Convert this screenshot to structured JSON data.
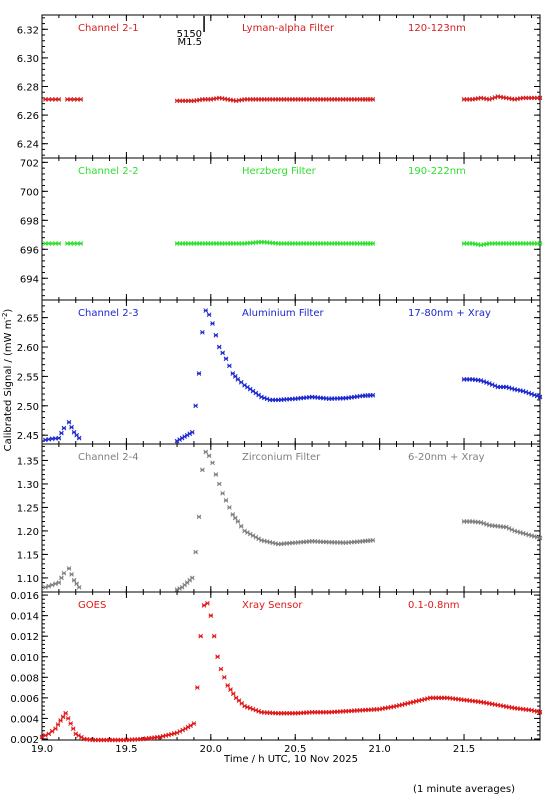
{
  "chart_data": {
    "type": "scatter",
    "xlabel": "Time / h UTC, 10 Nov 2025",
    "ylabel": "Calibrated Signal / (mW m",
    "ylabel_sup": "-2",
    "ylabel_close": ")",
    "footnote": "(1 minute averages)",
    "xlim": [
      19.0,
      21.95
    ],
    "xticks": [
      19.0,
      19.5,
      20.0,
      20.5,
      21.0,
      21.5
    ],
    "xtick_labels": [
      "19.0",
      "19.5",
      "20.0",
      "20.5",
      "21.0",
      "21.5"
    ],
    "flare_marker": {
      "x": 19.96,
      "label_top": "5150",
      "label_bottom": "M1.5"
    },
    "panels": [
      {
        "id": "ch21",
        "left_label": "Channel 2-1",
        "mid_label": "Lyman-alpha Filter",
        "right_label": "120-123nm",
        "color": "#d42020",
        "ylim": [
          6.23,
          6.33
        ],
        "yticks": [
          6.24,
          6.26,
          6.28,
          6.3,
          6.32
        ],
        "ytick_labels": [
          "6.24",
          "6.26",
          "6.28",
          "6.30",
          "6.32"
        ],
        "segments": [
          {
            "x": [
              19.02,
              19.06,
              19.1
            ],
            "y": [
              6.271,
              6.271,
              6.271
            ]
          },
          {
            "x": [
              19.15,
              19.19,
              19.23
            ],
            "y": [
              6.271,
              6.271,
              6.271
            ]
          },
          {
            "x": [
              19.8,
              19.85,
              19.9,
              19.95,
              20.0,
              20.05,
              20.1,
              20.15,
              20.2,
              20.3,
              20.4,
              20.5,
              20.6,
              20.7,
              20.8,
              20.9,
              20.96
            ],
            "y": [
              6.27,
              6.27,
              6.27,
              6.271,
              6.271,
              6.272,
              6.271,
              6.27,
              6.271,
              6.271,
              6.271,
              6.271,
              6.271,
              6.271,
              6.271,
              6.271,
              6.271
            ]
          },
          {
            "x": [
              21.5,
              21.55,
              21.6,
              21.65,
              21.7,
              21.75,
              21.8,
              21.85,
              21.9,
              21.95
            ],
            "y": [
              6.271,
              6.271,
              6.272,
              6.271,
              6.273,
              6.272,
              6.271,
              6.272,
              6.272,
              6.272
            ]
          }
        ]
      },
      {
        "id": "ch22",
        "left_label": "Channel 2-2",
        "mid_label": "Herzberg Filter",
        "right_label": "190-222nm",
        "color": "#2ee02e",
        "ylim": [
          692.5,
          702.3
        ],
        "yticks": [
          694,
          696,
          698,
          700,
          702
        ],
        "ytick_labels": [
          "694",
          "696",
          "698",
          "700",
          "702"
        ],
        "segments": [
          {
            "x": [
              19.02,
              19.06,
              19.1
            ],
            "y": [
              696.4,
              696.4,
              696.4
            ]
          },
          {
            "x": [
              19.15,
              19.19,
              19.23
            ],
            "y": [
              696.4,
              696.4,
              696.4
            ]
          },
          {
            "x": [
              19.8,
              19.9,
              20.0,
              20.1,
              20.2,
              20.3,
              20.4,
              20.5,
              20.6,
              20.7,
              20.8,
              20.9,
              20.96
            ],
            "y": [
              696.4,
              696.4,
              696.4,
              696.4,
              696.4,
              696.5,
              696.4,
              696.4,
              696.4,
              696.4,
              696.4,
              696.4,
              696.4
            ]
          },
          {
            "x": [
              21.5,
              21.55,
              21.6,
              21.65,
              21.7,
              21.75,
              21.8,
              21.85,
              21.9,
              21.95
            ],
            "y": [
              696.4,
              696.4,
              696.3,
              696.4,
              696.4,
              696.4,
              696.4,
              696.4,
              696.4,
              696.4
            ]
          }
        ]
      },
      {
        "id": "ch23",
        "left_label": "Channel 2-3",
        "mid_label": "Aluminium Filter",
        "right_label": "17-80nm + Xray",
        "color": "#1c28d0",
        "ylim": [
          2.435,
          2.68
        ],
        "yticks": [
          2.45,
          2.5,
          2.55,
          2.6,
          2.65
        ],
        "ytick_labels": [
          "2.45",
          "2.50",
          "2.55",
          "2.60",
          "2.65"
        ],
        "segments": [
          {
            "x": [
              19.02,
              19.06,
              19.1,
              19.13
            ],
            "y": [
              2.442,
              2.444,
              2.445,
              2.462
            ]
          },
          {
            "x": [
              19.16,
              19.19,
              19.22
            ],
            "y": [
              2.472,
              2.455,
              2.445
            ]
          },
          {
            "x": [
              19.8,
              19.83,
              19.86,
              19.89,
              19.91,
              19.93,
              19.95,
              19.97,
              19.99,
              20.01,
              20.03,
              20.05,
              20.07,
              20.09,
              20.11,
              20.13,
              20.16,
              20.2,
              20.25,
              20.3,
              20.35,
              20.4,
              20.5,
              20.6,
              20.7,
              20.8,
              20.9,
              20.96
            ],
            "y": [
              2.44,
              2.445,
              2.45,
              2.455,
              2.5,
              2.555,
              2.625,
              2.662,
              2.655,
              2.64,
              2.62,
              2.6,
              2.59,
              2.58,
              2.568,
              2.555,
              2.545,
              2.535,
              2.525,
              2.515,
              2.51,
              2.51,
              2.512,
              2.515,
              2.512,
              2.513,
              2.517,
              2.518
            ]
          },
          {
            "x": [
              21.5,
              21.55,
              21.6,
              21.65,
              21.7,
              21.75,
              21.8,
              21.85,
              21.9,
              21.95
            ],
            "y": [
              2.545,
              2.545,
              2.543,
              2.538,
              2.532,
              2.532,
              2.528,
              2.525,
              2.52,
              2.515
            ]
          }
        ]
      },
      {
        "id": "ch24",
        "left_label": "Channel 2-4",
        "mid_label": "Zirconium Filter",
        "right_label": "6-20nm + Xray",
        "color": "#808080",
        "ylim": [
          1.07,
          1.385
        ],
        "yticks": [
          1.1,
          1.15,
          1.2,
          1.25,
          1.3,
          1.35
        ],
        "ytick_labels": [
          "1.10",
          "1.15",
          "1.20",
          "1.25",
          "1.30",
          "1.35"
        ],
        "segments": [
          {
            "x": [
              19.02,
              19.06,
              19.1,
              19.13
            ],
            "y": [
              1.08,
              1.085,
              1.09,
              1.11
            ]
          },
          {
            "x": [
              19.16,
              19.19,
              19.22
            ],
            "y": [
              1.12,
              1.095,
              1.08
            ]
          },
          {
            "x": [
              19.8,
              19.83,
              19.86,
              19.89,
              19.91,
              19.93,
              19.95,
              19.97,
              19.99,
              20.01,
              20.03,
              20.05,
              20.07,
              20.09,
              20.11,
              20.13,
              20.16,
              20.2,
              20.25,
              20.3,
              20.4,
              20.5,
              20.6,
              20.7,
              20.8,
              20.9,
              20.96
            ],
            "y": [
              1.075,
              1.08,
              1.09,
              1.1,
              1.155,
              1.23,
              1.33,
              1.368,
              1.36,
              1.345,
              1.32,
              1.3,
              1.28,
              1.265,
              1.25,
              1.235,
              1.22,
              1.2,
              1.19,
              1.18,
              1.172,
              1.175,
              1.178,
              1.176,
              1.175,
              1.178,
              1.18
            ]
          },
          {
            "x": [
              21.5,
              21.55,
              21.6,
              21.65,
              21.7,
              21.75,
              21.8,
              21.85,
              21.9,
              21.95
            ],
            "y": [
              1.22,
              1.22,
              1.218,
              1.212,
              1.21,
              1.208,
              1.2,
              1.195,
              1.19,
              1.185
            ]
          }
        ]
      },
      {
        "id": "goes",
        "left_label": "GOES",
        "mid_label": "Xray Sensor",
        "right_label": "0.1-0.8nm",
        "color": "#e01818",
        "ylim": [
          0.0019,
          0.0163
        ],
        "yticks": [
          0.002,
          0.004,
          0.006,
          0.008,
          0.01,
          0.012,
          0.014,
          0.016
        ],
        "ytick_labels": [
          "0.002",
          "0.004",
          "0.006",
          "0.008",
          "0.010",
          "0.012",
          "0.014",
          "0.016"
        ],
        "segments": [
          {
            "x": [
              19.0,
              19.04,
              19.08,
              19.11,
              19.14,
              19.17,
              19.2,
              19.25,
              19.3,
              19.4,
              19.5,
              19.6,
              19.7,
              19.8,
              19.85,
              19.88,
              19.9,
              19.92,
              19.94,
              19.96,
              19.98,
              20.0,
              20.02,
              20.04,
              20.06,
              20.08,
              20.1,
              20.15,
              20.2,
              20.3,
              20.4,
              20.5,
              20.6,
              20.7,
              20.8,
              20.9,
              21.0,
              21.1,
              21.2,
              21.3,
              21.4,
              21.5,
              21.6,
              21.7,
              21.8,
              21.9,
              21.95
            ],
            "y": [
              0.0022,
              0.0025,
              0.003,
              0.0038,
              0.0045,
              0.0035,
              0.0025,
              0.002,
              0.0019,
              0.0019,
              0.0019,
              0.002,
              0.0022,
              0.0026,
              0.003,
              0.0033,
              0.0035,
              0.007,
              0.012,
              0.015,
              0.0152,
              0.014,
              0.012,
              0.01,
              0.0088,
              0.008,
              0.0072,
              0.006,
              0.0052,
              0.0046,
              0.0045,
              0.0045,
              0.0046,
              0.0046,
              0.0047,
              0.0048,
              0.0049,
              0.0052,
              0.0056,
              0.006,
              0.006,
              0.0058,
              0.0056,
              0.0053,
              0.005,
              0.0048,
              0.0046
            ]
          }
        ]
      }
    ]
  }
}
